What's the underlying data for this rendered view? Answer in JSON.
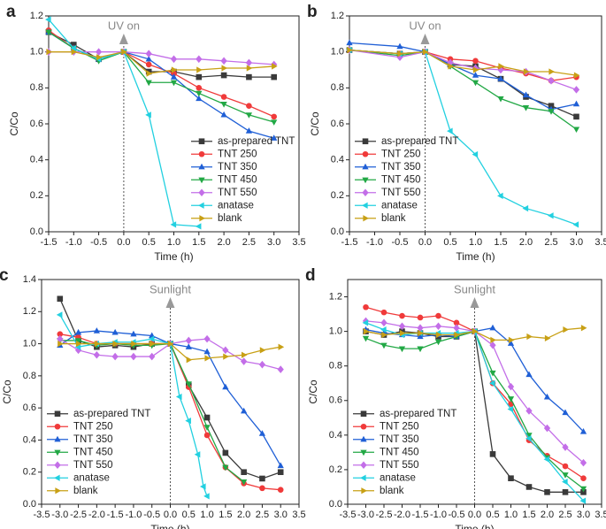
{
  "chart_data": [
    {
      "type": "line",
      "panel_label": "a",
      "annotation": "UV on",
      "xlabel": "Time (h)",
      "ylabel": "C/Co",
      "legend": "lower right",
      "xlim": [
        -1.5,
        3.5
      ],
      "ylim": [
        0,
        1.2
      ],
      "xticks": [
        -1.5,
        {
          "value": -1,
          "label": "-1.0"
        },
        -0.5,
        {
          "value": 0,
          "label": "0.0"
        },
        0.5,
        {
          "value": 1,
          "label": "1.0"
        },
        1.5,
        {
          "value": 2,
          "label": "2.0"
        },
        2.5,
        {
          "value": 3,
          "label": "3.0"
        },
        3.5
      ],
      "yticks": [
        {
          "value": 0,
          "label": "0.0"
        },
        0.2,
        0.4,
        0.6,
        0.8,
        {
          "value": 1,
          "label": "1.0"
        },
        1.2
      ],
      "x": [
        -1.5,
        -1,
        -0.5,
        0,
        0.5,
        1,
        1.5,
        2,
        2.5,
        3
      ],
      "series": [
        {
          "name": "as-prepared TNT",
          "color": "#3a3a3a",
          "marker": "square",
          "values": [
            1.11,
            1.04,
            0.96,
            1.0,
            0.89,
            0.89,
            0.86,
            0.87,
            0.86,
            0.86
          ]
        },
        {
          "name": "TNT 250",
          "color": "#f03a3a",
          "marker": "circle",
          "values": [
            1.12,
            1.02,
            0.96,
            1.0,
            0.93,
            0.88,
            0.8,
            0.75,
            0.7,
            0.64
          ]
        },
        {
          "name": "TNT 350",
          "color": "#1f5fd6",
          "marker": "triangle-up",
          "values": [
            1.11,
            1.02,
            0.96,
            1.0,
            0.96,
            0.86,
            0.74,
            0.65,
            0.56,
            0.52
          ]
        },
        {
          "name": "TNT 450",
          "color": "#22a845",
          "marker": "triangle-down",
          "values": [
            1.11,
            1.02,
            0.95,
            1.0,
            0.83,
            0.83,
            0.77,
            0.71,
            0.65,
            0.61
          ]
        },
        {
          "name": "TNT 550",
          "color": "#c36ee8",
          "marker": "diamond",
          "values": [
            1.0,
            1.0,
            1.0,
            1.0,
            0.99,
            0.96,
            0.96,
            0.95,
            0.94,
            0.93
          ]
        },
        {
          "name": "anatase",
          "color": "#22d0e0",
          "marker": "triangle-left",
          "values": [
            1.18,
            1.02,
            0.96,
            1.0,
            0.65,
            0.04,
            0.03,
            null,
            null,
            null
          ]
        },
        {
          "name": "blank",
          "color": "#c8a015",
          "marker": "triangle-right",
          "values": [
            1.0,
            1.0,
            0.97,
            1.0,
            0.88,
            0.9,
            0.9,
            0.91,
            0.91,
            0.92
          ]
        }
      ]
    },
    {
      "type": "line",
      "panel_label": "b",
      "annotation": "UV on",
      "xlabel": "Time (h)",
      "ylabel": "C/Co",
      "legend": "lower left",
      "xlim": [
        -1.5,
        3.5
      ],
      "ylim": [
        0,
        1.2
      ],
      "xticks": [
        -1.5,
        {
          "value": -1,
          "label": "-1.0"
        },
        -0.5,
        {
          "value": 0,
          "label": "0.0"
        },
        0.5,
        {
          "value": 1,
          "label": "1.0"
        },
        1.5,
        {
          "value": 2,
          "label": "2.0"
        },
        2.5,
        {
          "value": 3,
          "label": "3.0"
        },
        3.5
      ],
      "yticks": [
        {
          "value": 0,
          "label": "0.0"
        },
        0.2,
        0.4,
        0.6,
        0.8,
        {
          "value": 1,
          "label": "1.0"
        },
        1.2
      ],
      "x": [
        -1.5,
        -0.5,
        0,
        0.5,
        1,
        1.5,
        2,
        2.5,
        3
      ],
      "series": [
        {
          "name": "as-prepared TNT",
          "color": "#3a3a3a",
          "marker": "square",
          "values": [
            1.01,
            0.99,
            1.0,
            0.93,
            0.92,
            0.85,
            0.75,
            0.7,
            0.64
          ]
        },
        {
          "name": "TNT 250",
          "color": "#f03a3a",
          "marker": "circle",
          "values": [
            1.01,
            0.99,
            1.0,
            0.96,
            0.95,
            0.91,
            0.88,
            0.84,
            0.86
          ]
        },
        {
          "name": "TNT 350",
          "color": "#1f5fd6",
          "marker": "triangle-up",
          "values": [
            1.05,
            1.03,
            1.0,
            0.93,
            0.87,
            0.85,
            0.76,
            0.68,
            0.71
          ]
        },
        {
          "name": "TNT 450",
          "color": "#22a845",
          "marker": "triangle-down",
          "values": [
            1.01,
            0.98,
            1.0,
            0.92,
            0.83,
            0.74,
            0.69,
            0.67,
            0.57
          ]
        },
        {
          "name": "TNT 550",
          "color": "#c36ee8",
          "marker": "diamond",
          "values": [
            1.01,
            0.97,
            1.0,
            0.94,
            0.91,
            0.9,
            0.89,
            0.84,
            0.79
          ]
        },
        {
          "name": "anatase",
          "color": "#22d0e0",
          "marker": "triangle-left",
          "values": [
            1.01,
            0.99,
            1.0,
            0.56,
            0.43,
            0.2,
            0.13,
            0.09,
            0.04
          ]
        },
        {
          "name": "blank",
          "color": "#c8a015",
          "marker": "triangle-right",
          "values": [
            1.01,
            0.99,
            1.0,
            0.92,
            0.9,
            0.92,
            0.89,
            0.89,
            0.87
          ]
        }
      ]
    },
    {
      "type": "line",
      "panel_label": "c",
      "annotation": "Sunlight",
      "xlabel": "Time (h)",
      "ylabel": "C/Co",
      "legend": "lower left",
      "xlim": [
        -3.5,
        3.5
      ],
      "ylim": [
        0,
        1.4
      ],
      "xticks": [
        -3.5,
        {
          "value": -3,
          "label": "-3.0"
        },
        -2.5,
        {
          "value": -2,
          "label": "-2.0"
        },
        -1.5,
        {
          "value": -1,
          "label": "-1.0"
        },
        -0.5,
        {
          "value": 0,
          "label": "0.0"
        },
        0.5,
        {
          "value": 1,
          "label": "1.0"
        },
        1.5,
        {
          "value": 2,
          "label": "2.0"
        },
        2.5,
        {
          "value": 3,
          "label": "3.0"
        },
        3.5
      ],
      "yticks": [
        {
          "value": 0,
          "label": "0.0"
        },
        0.2,
        0.4,
        0.6,
        0.8,
        {
          "value": 1,
          "label": "1.0"
        },
        1.2,
        1.4
      ],
      "x": [
        -3,
        -2.5,
        -2,
        -1.5,
        -1,
        -0.5,
        0,
        0.5,
        1,
        1.5,
        2,
        2.5,
        3
      ],
      "series": [
        {
          "name": "as-prepared TNT",
          "color": "#3a3a3a",
          "marker": "square",
          "values": [
            1.28,
            1.02,
            0.98,
            0.99,
            0.98,
            1.0,
            1.0,
            0.74,
            0.54,
            0.32,
            0.2,
            0.16,
            0.2
          ]
        },
        {
          "name": "TNT 250",
          "color": "#f03a3a",
          "marker": "circle",
          "values": [
            1.06,
            1.04,
            1.0,
            1.0,
            1.0,
            1.0,
            1.0,
            0.73,
            0.43,
            0.23,
            0.13,
            0.1,
            0.09
          ]
        },
        {
          "name": "TNT 350",
          "color": "#1f5fd6",
          "marker": "triangle-up",
          "values": [
            0.99,
            1.07,
            1.08,
            1.07,
            1.06,
            1.05,
            1.0,
            0.98,
            0.95,
            0.73,
            0.58,
            0.44,
            0.24
          ]
        },
        {
          "name": "TNT 450",
          "color": "#22a845",
          "marker": "triangle-down",
          "values": [
            1.02,
            1.02,
            0.99,
            1.0,
            0.99,
            0.99,
            1.0,
            0.75,
            0.48,
            0.23,
            0.14,
            null,
            null
          ]
        },
        {
          "name": "TNT 550",
          "color": "#c36ee8",
          "marker": "diamond",
          "values": [
            1.03,
            0.96,
            0.93,
            0.92,
            0.92,
            0.92,
            1.0,
            1.02,
            1.03,
            0.96,
            0.89,
            0.87,
            0.84
          ]
        },
        {
          "name": "anatase",
          "color": "#22d0e0",
          "marker": "triangle-left",
          "x": [
            -3,
            -2.5,
            -2,
            -1.5,
            -1,
            -0.5,
            0,
            0.25,
            0.5,
            0.75,
            0.9,
            1
          ],
          "values": [
            1.18,
            0.98,
            1.0,
            1.01,
            1.01,
            1.03,
            1.0,
            0.67,
            0.52,
            0.31,
            0.11,
            0.05
          ]
        },
        {
          "name": "blank",
          "color": "#c8a015",
          "marker": "triangle-right",
          "values": [
            1.0,
            1.0,
            1.0,
            1.0,
            1.0,
            1.0,
            1.0,
            0.9,
            0.91,
            0.92,
            0.93,
            0.96,
            0.98
          ]
        }
      ]
    },
    {
      "type": "line",
      "panel_label": "d",
      "annotation": "Sunlight",
      "xlabel": "Time (h)",
      "ylabel": "C/Co",
      "legend": "lower left",
      "xlim": [
        -3.5,
        3.5
      ],
      "ylim": [
        0,
        1.3
      ],
      "xticks": [
        -3.5,
        {
          "value": -3,
          "label": "-3.0"
        },
        -2.5,
        {
          "value": -2,
          "label": "-2.0"
        },
        -1.5,
        {
          "value": -1,
          "label": "-1.0"
        },
        -0.5,
        {
          "value": 0,
          "label": "0.0"
        },
        0.5,
        {
          "value": 1,
          "label": "1.0"
        },
        1.5,
        {
          "value": 2,
          "label": "2.0"
        },
        2.5,
        {
          "value": 3,
          "label": "3.0"
        },
        3.5
      ],
      "yticks": [
        {
          "value": 0,
          "label": "0.0"
        },
        0.2,
        0.4,
        0.6,
        0.8,
        {
          "value": 1,
          "label": "1.0"
        },
        1.2
      ],
      "x": [
        -3,
        -2.5,
        -2,
        -1.5,
        -1,
        -0.5,
        0,
        0.5,
        1,
        1.5,
        2,
        2.5,
        3
      ],
      "series": [
        {
          "name": "as-prepared TNT",
          "color": "#3a3a3a",
          "marker": "square",
          "values": [
            1.0,
            0.98,
            1.0,
            0.99,
            0.97,
            0.97,
            1.0,
            0.29,
            0.15,
            0.1,
            0.07,
            0.07,
            0.07
          ]
        },
        {
          "name": "TNT 250",
          "color": "#f03a3a",
          "marker": "circle",
          "values": [
            1.14,
            1.11,
            1.09,
            1.08,
            1.09,
            1.05,
            1.0,
            0.7,
            0.58,
            0.37,
            0.28,
            0.22,
            0.15
          ]
        },
        {
          "name": "TNT 350",
          "color": "#1f5fd6",
          "marker": "triangle-up",
          "values": [
            1.01,
            0.99,
            0.98,
            0.97,
            0.98,
            0.97,
            1.0,
            1.02,
            0.93,
            0.75,
            0.62,
            0.53,
            0.42
          ]
        },
        {
          "name": "TNT 450",
          "color": "#22a845",
          "marker": "triangle-down",
          "values": [
            0.96,
            0.92,
            0.9,
            0.9,
            0.94,
            0.97,
            1.0,
            0.76,
            0.61,
            0.4,
            0.27,
            0.17,
            0.09
          ]
        },
        {
          "name": "TNT 550",
          "color": "#c36ee8",
          "marker": "diamond",
          "values": [
            1.06,
            1.05,
            1.03,
            1.02,
            1.03,
            1.02,
            1.0,
            0.92,
            0.68,
            0.54,
            0.44,
            0.33,
            0.24
          ]
        },
        {
          "name": "anatase",
          "color": "#22d0e0",
          "marker": "triangle-left",
          "values": [
            1.05,
            1.01,
            0.98,
            0.99,
            0.99,
            0.99,
            1.0,
            0.7,
            0.55,
            0.38,
            0.26,
            0.13,
            0.02
          ]
        },
        {
          "name": "blank",
          "color": "#c8a015",
          "marker": "triangle-right",
          "values": [
            1.0,
            0.98,
            0.99,
            0.99,
            0.98,
            0.98,
            1.0,
            0.95,
            0.95,
            0.97,
            0.96,
            1.01,
            1.02
          ]
        }
      ]
    }
  ]
}
